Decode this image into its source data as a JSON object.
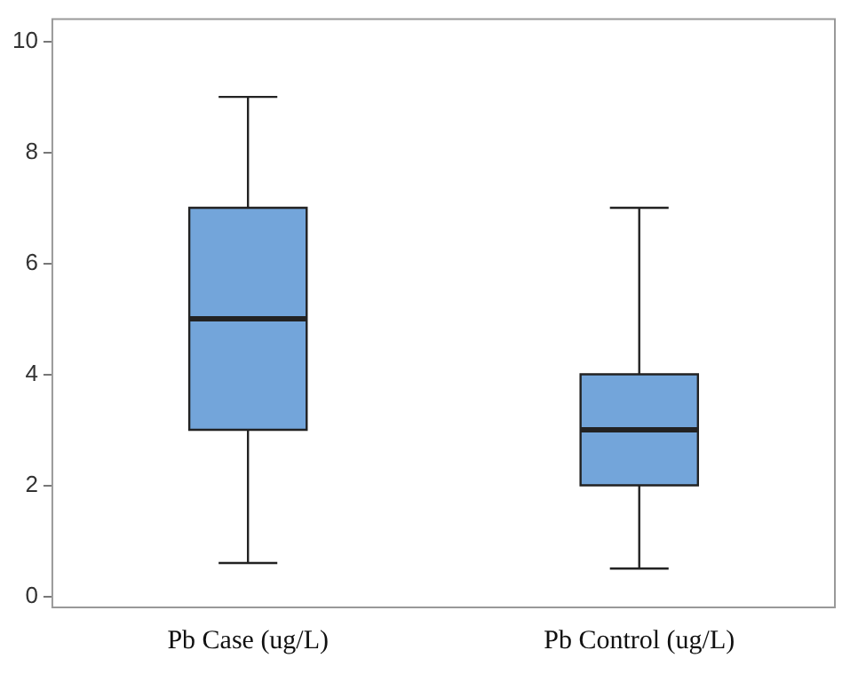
{
  "chart_data": {
    "type": "box",
    "categories": [
      "Pb Case (ug/L)",
      "Pb Control (ug/L)"
    ],
    "color": "#73a5da",
    "boxes": [
      {
        "low": 0.6,
        "q1": 3,
        "median": 5,
        "q3": 7,
        "high": 9
      },
      {
        "low": 0.5,
        "q1": 2,
        "median": 3,
        "q3": 4,
        "high": 7
      }
    ],
    "ylim": [
      -0.2,
      10.4
    ],
    "yticks": [
      0,
      2,
      4,
      6,
      8,
      10
    ],
    "grid": false,
    "legend": false
  }
}
